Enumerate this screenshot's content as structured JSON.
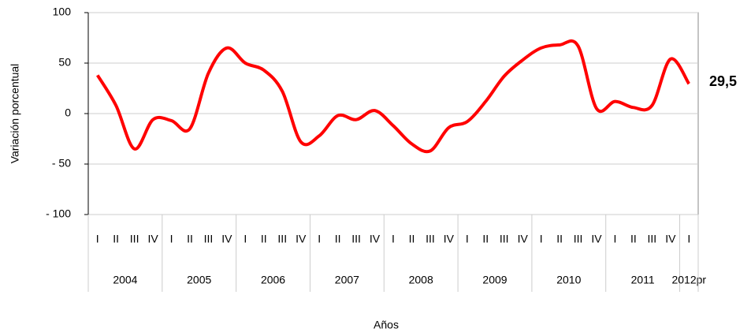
{
  "chart_data": {
    "type": "line",
    "x_title": "Años",
    "y_title": "Variación porcentual",
    "categories": [
      "I",
      "II",
      "III",
      "IV",
      "I",
      "II",
      "III",
      "IV",
      "I",
      "II",
      "III",
      "IV",
      "I",
      "II",
      "III",
      "IV",
      "I",
      "II",
      "III",
      "IV",
      "I",
      "II",
      "III",
      "IV",
      "I",
      "II",
      "III",
      "IV",
      "I",
      "II",
      "III",
      "IV",
      "I"
    ],
    "years": [
      {
        "label": "2004",
        "quarters": 4
      },
      {
        "label": "2005",
        "quarters": 4
      },
      {
        "label": "2006",
        "quarters": 4
      },
      {
        "label": "2007",
        "quarters": 4
      },
      {
        "label": "2008",
        "quarters": 4
      },
      {
        "label": "2009",
        "quarters": 4
      },
      {
        "label": "2010",
        "quarters": 4
      },
      {
        "label": "2011",
        "quarters": 4
      },
      {
        "label": "2012pr",
        "quarters": 1
      }
    ],
    "series": [
      {
        "color": "#ff0000",
        "values": [
          38,
          8,
          -35,
          -6,
          -7,
          -15,
          40,
          65,
          50,
          43,
          22,
          -28,
          -22,
          -2,
          -6,
          3,
          -12,
          -30,
          -37,
          -14,
          -8,
          12,
          37,
          53,
          65,
          68,
          67,
          5,
          12,
          6,
          8,
          54,
          29.5
        ],
        "value_labels": [
          null,
          null,
          null,
          null,
          null,
          null,
          null,
          null,
          null,
          null,
          null,
          null,
          null,
          null,
          null,
          null,
          null,
          null,
          null,
          null,
          null,
          null,
          null,
          null,
          null,
          null,
          null,
          null,
          null,
          null,
          null,
          null,
          "29,5"
        ]
      }
    ],
    "ylim": [
      -100,
      100
    ],
    "yticks": [
      100,
      50,
      0,
      {
        "value": -50,
        "label": "- 50"
      },
      {
        "value": -100,
        "label": "- 100"
      }
    ],
    "grid": true
  }
}
